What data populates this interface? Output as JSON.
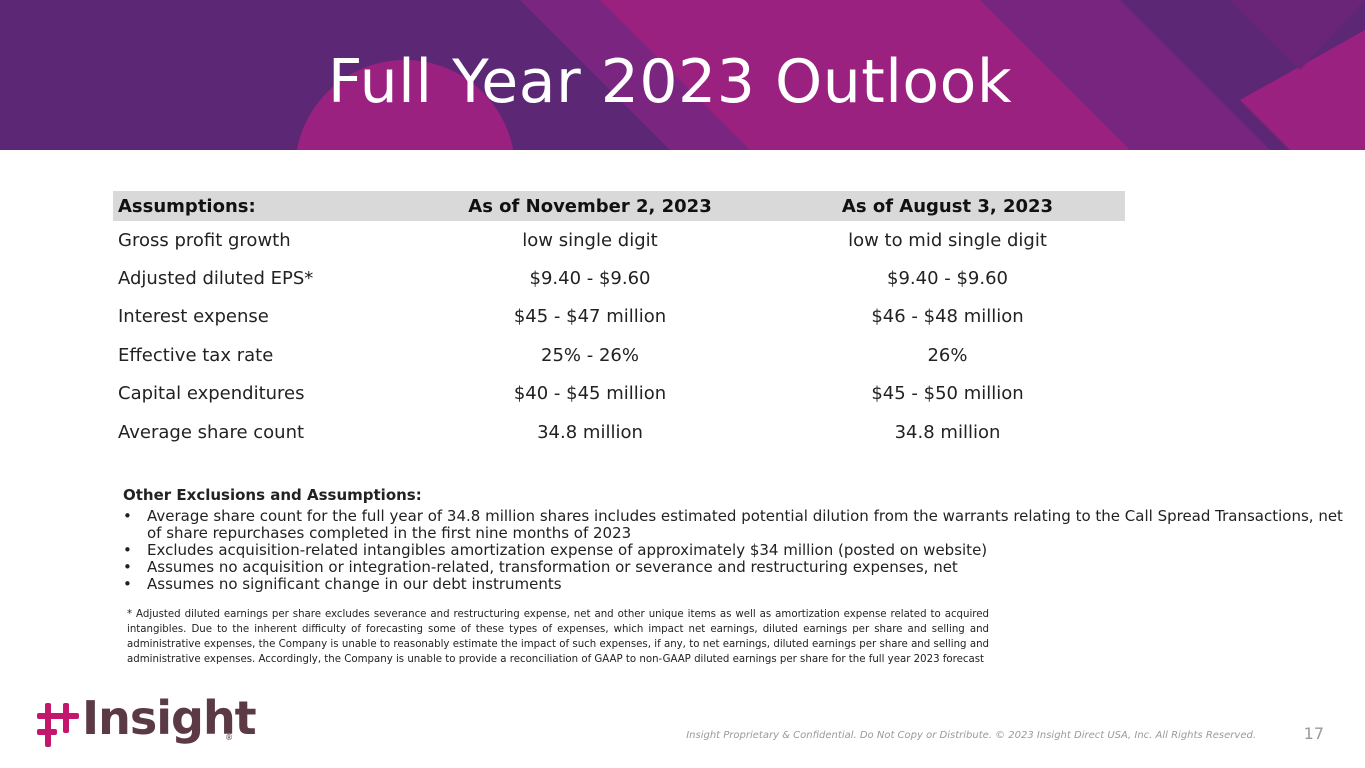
{
  "title": "Full Year 2023 Outlook",
  "table": {
    "headers": [
      "Assumptions:",
      "As of November 2, 2023",
      "As of August 3, 2023"
    ],
    "rows": [
      [
        "Gross profit growth",
        "low single digit",
        "low to mid single digit"
      ],
      [
        "Adjusted diluted EPS*",
        "$9.40 - $9.60",
        "$9.40 - $9.60"
      ],
      [
        "Interest expense",
        "$45 - $47 million",
        "$46 - $48 million"
      ],
      [
        "Effective tax rate",
        "25% - 26%",
        "26%"
      ],
      [
        "Capital expenditures",
        "$40 - $45 million",
        "$45 - $50 million"
      ],
      [
        "Average share count",
        "34.8 million",
        "34.8 million"
      ]
    ]
  },
  "other": {
    "heading": "Other Exclusions and Assumptions:",
    "bullet": "•",
    "items": [
      "Average share count for the full year of 34.8 million shares includes estimated potential dilution from the warrants relating to the Call Spread Transactions, net of share repurchases completed in the first nine months of 2023",
      "Excludes acquisition-related intangibles amortization expense of approximately $34 million (posted on website)",
      "Assumes no acquisition or integration-related, transformation or severance and restructuring expenses, net",
      "Assumes no significant change in our debt instruments"
    ]
  },
  "footnote": "* Adjusted diluted earnings per share excludes severance and restructuring expense, net and other unique items as well as amortization expense related to acquired intangibles. Due to the inherent difficulty of forecasting some of these types of expenses, which impact net earnings, diluted earnings per share and selling and administrative expenses, the Company is unable to reasonably estimate the impact of such expenses, if any, to net earnings, diluted earnings per share and selling and administrative expenses. Accordingly, the Company is unable to provide a reconciliation of GAAP to non-GAAP diluted earnings per share for the full year 2023 forecast",
  "footer": {
    "logo_text": "Insight",
    "logo_reg": "®",
    "legal": "Insight Proprietary & Confidential. Do Not Copy or Distribute. © 2023 Insight Direct USA, Inc. All Rights Reserved.",
    "page_number": "17"
  },
  "colors": {
    "banner": "#5c2774",
    "magenta": "#9b2180",
    "logo_pink": "#c4166c",
    "logo_brown": "#5b3a45"
  }
}
